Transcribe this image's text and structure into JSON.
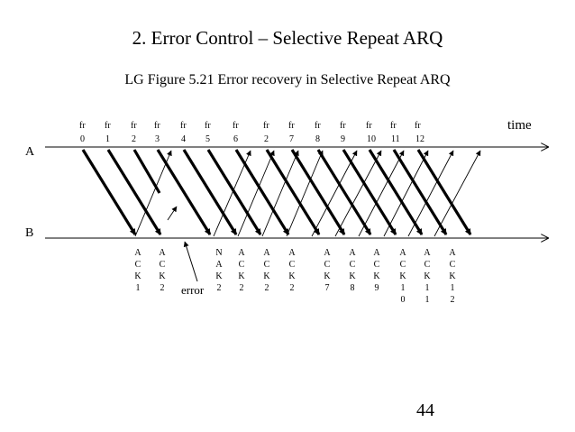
{
  "slide": {
    "title": "2. Error Control – Selective Repeat ARQ",
    "subtitle": "LG Figure 5.21 Error recovery in Selective Repeat ARQ",
    "page_number": "44"
  },
  "diagram": {
    "station_a_label": "A",
    "station_b_label": "B",
    "time_label": "time",
    "error_label": "error",
    "frame_prefix": "fr",
    "frames": [
      {
        "num": "0"
      },
      {
        "num": "1"
      },
      {
        "num": "2"
      },
      {
        "num": "3"
      },
      {
        "num": "4"
      },
      {
        "num": "5"
      },
      {
        "num": "6"
      },
      {
        "num": "2"
      },
      {
        "num": "7"
      },
      {
        "num": "8"
      },
      {
        "num": "9"
      },
      {
        "num": "10"
      },
      {
        "num": "11"
      },
      {
        "num": "12"
      }
    ],
    "acks": [
      {
        "letters": [
          "A",
          "C",
          "K",
          "1"
        ]
      },
      {
        "letters": [
          "A",
          "C",
          "K",
          "2"
        ]
      },
      {
        "letters": [
          "N",
          "A",
          "K",
          "2"
        ]
      },
      {
        "letters": [
          "A",
          "C",
          "K",
          "2"
        ]
      },
      {
        "letters": [
          "A",
          "C",
          "K",
          "2"
        ]
      },
      {
        "letters": [
          "A",
          "C",
          "K",
          "2"
        ]
      },
      {
        "letters": [
          "A",
          "C",
          "K",
          "7"
        ]
      },
      {
        "letters": [
          "A",
          "C",
          "K",
          "8"
        ]
      },
      {
        "letters": [
          "A",
          "C",
          "K",
          "9"
        ]
      },
      {
        "letters": [
          "A",
          "C",
          "K",
          "1",
          "0"
        ]
      },
      {
        "letters": [
          "A",
          "C",
          "K",
          "1",
          "1"
        ]
      },
      {
        "letters": [
          "A",
          "C",
          "K",
          "1",
          "2"
        ]
      }
    ]
  }
}
